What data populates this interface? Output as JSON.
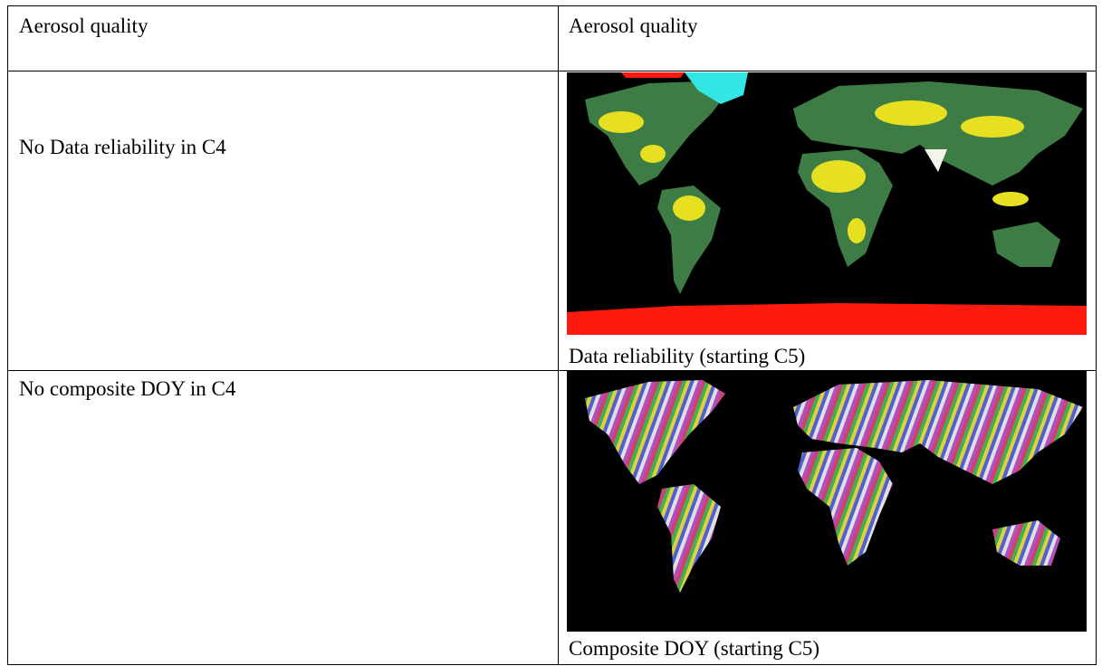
{
  "table": {
    "rows": [
      [
        "Aerosol quality",
        "Aerosol quality"
      ],
      [
        "No Data reliability in C4",
        "Data reliability (starting C5)"
      ],
      [
        "No composite DOY in C4",
        "Composite DOY (starting C5)"
      ]
    ]
  }
}
